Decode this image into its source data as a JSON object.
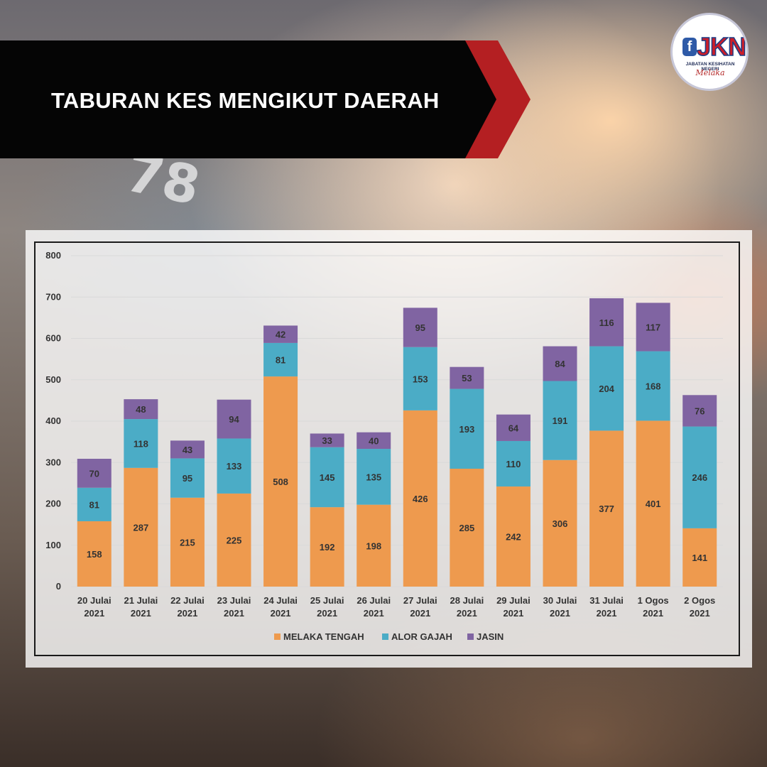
{
  "banner": {
    "title": "TABURAN KES MENGIKUT DAERAH"
  },
  "logo": {
    "letter": "f",
    "text": "JKN",
    "subtitle": "JABATAN KESIHATAN NEGERI",
    "script": "Melaka"
  },
  "colors": {
    "melaka_tengah": "#ee9a4e",
    "alor_gajah": "#4bacc6",
    "jasin": "#8064a2",
    "banner": "#050505",
    "banner_accent": "#b41f22"
  },
  "chart_data": {
    "type": "bar",
    "stacked": true,
    "categories": [
      [
        "20 Julai",
        "2021"
      ],
      [
        "21 Julai",
        "2021"
      ],
      [
        "22 Julai",
        "2021"
      ],
      [
        "23 Julai",
        "2021"
      ],
      [
        "24 Julai",
        "2021"
      ],
      [
        "25 Julai",
        "2021"
      ],
      [
        "26 Julai",
        "2021"
      ],
      [
        "27 Julai",
        "2021"
      ],
      [
        "28 Julai",
        "2021"
      ],
      [
        "29 Julai",
        "2021"
      ],
      [
        "30 Julai",
        "2021"
      ],
      [
        "31 Julai",
        "2021"
      ],
      [
        "1 Ogos",
        "2021"
      ],
      [
        "2 Ogos",
        "2021"
      ]
    ],
    "series": [
      {
        "name": "MELAKA TENGAH",
        "values": [
          158,
          287,
          215,
          225,
          508,
          192,
          198,
          426,
          285,
          242,
          306,
          377,
          401,
          141
        ]
      },
      {
        "name": "ALOR GAJAH",
        "values": [
          81,
          118,
          95,
          133,
          81,
          145,
          135,
          153,
          193,
          110,
          191,
          204,
          168,
          246
        ]
      },
      {
        "name": "JASIN",
        "values": [
          70,
          48,
          43,
          94,
          42,
          33,
          40,
          95,
          53,
          64,
          84,
          116,
          117,
          76
        ]
      }
    ],
    "ylim": [
      0,
      800
    ],
    "yticks": [
      0,
      100,
      200,
      300,
      400,
      500,
      600,
      700,
      800
    ],
    "grid": true,
    "legend": "bottom"
  }
}
